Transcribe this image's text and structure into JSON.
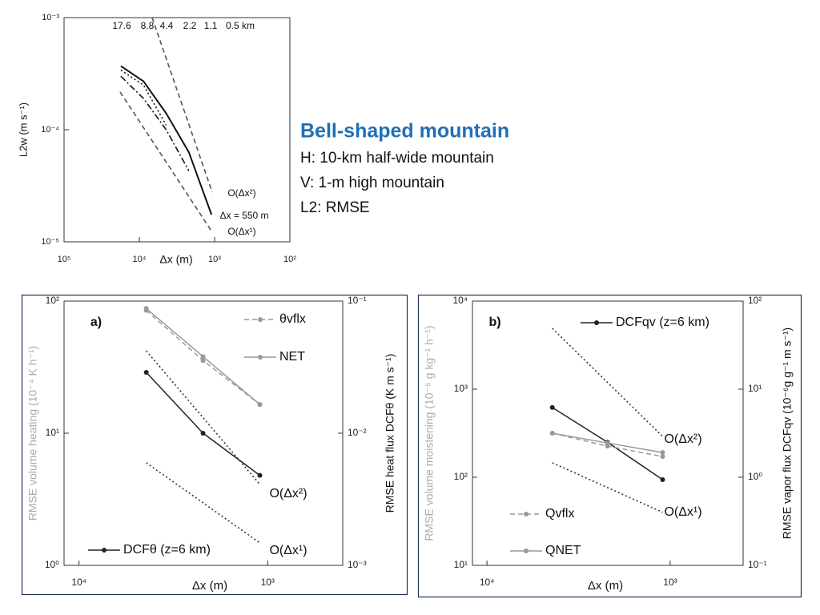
{
  "text_block": {
    "title": "Bell-shaped mountain",
    "lines": [
      "H: 10-km half-wide mountain",
      "V: 1-m high mountain",
      "L2: RMSE"
    ]
  },
  "chart_data": [
    {
      "type": "line",
      "x_label": "Δx (m)",
      "y_label": "L2w (m s⁻¹)",
      "log_x": true,
      "log_y": true,
      "xlim": [
        100000,
        100
      ],
      "ylim": [
        1e-05,
        0.001
      ],
      "xticks": [
        {
          "value": 100000,
          "label": "10⁵"
        },
        {
          "value": 10000,
          "label": "10⁴"
        },
        {
          "value": 1000,
          "label": "10³"
        },
        {
          "value": 100,
          "label": "10²"
        }
      ],
      "yticks": [
        {
          "value": 1e-05,
          "label": "10⁻⁵"
        },
        {
          "value": 0.0001,
          "label": "10⁻⁴"
        },
        {
          "value": 0.001,
          "label": "10⁻³"
        }
      ],
      "annotations": [
        "17.6",
        "8.8",
        "4.4",
        "2.2",
        "1.1",
        "0.5 km",
        "Δx = 550 m",
        "O(Δx²)",
        "O(Δx¹)"
      ],
      "series": [
        {
          "color": "#111111",
          "line_style": "solid",
          "x": [
            17600,
            8800,
            4400,
            2200,
            1100
          ],
          "values": [
            0.00037,
            0.00027,
            0.00014,
            6.3e-05,
            1.75e-05
          ]
        },
        {
          "color": "#111111",
          "line_style": "dotted",
          "x": [
            17600,
            8800,
            4400
          ],
          "values": [
            0.00034,
            0.00025,
            0.00011
          ]
        },
        {
          "color": "#111111",
          "line_style": "dashdot",
          "x": [
            17600,
            8800,
            4400,
            2200
          ],
          "values": [
            0.0003,
            0.00019,
            0.0001,
            4.3e-05
          ]
        },
        {
          "color": "#555555",
          "line_style": "dashed",
          "x": [
            6760,
            1076
          ],
          "values": [
            0.001,
            2.77e-05
          ]
        },
        {
          "color": "#555555",
          "line_style": "dashed",
          "x": [
            18000,
            1076
          ],
          "values": [
            0.000217,
            1.22e-05
          ]
        }
      ]
    },
    {
      "type": "line",
      "x_label": "Δx (m)",
      "y_label": "RMSE volume heating (10⁻⁴ K h⁻¹)",
      "y2_label": "RMSE heat flux DCFθ (K m s⁻¹)",
      "log_x": true,
      "log_y": true,
      "xlim": [
        12000,
        400
      ],
      "ylim": [
        1,
        100
      ],
      "y2lim": [
        0.001,
        0.1
      ],
      "xticks": [
        {
          "value": 10000,
          "label": "10⁴"
        },
        {
          "value": 1000,
          "label": "10³"
        }
      ],
      "yticks": [
        {
          "value": 1,
          "label": "10⁰"
        },
        {
          "value": 10,
          "label": "10¹"
        },
        {
          "value": 100,
          "label": "10²"
        }
      ],
      "y2ticks": [
        {
          "value": 0.001,
          "label": "10⁻³"
        },
        {
          "value": 0.01,
          "label": "10⁻²"
        },
        {
          "value": 0.1,
          "label": "10⁻¹"
        }
      ],
      "annotations": [
        "a)",
        "O(Δx²)",
        "O(Δx¹)"
      ],
      "series": [
        {
          "name": "θvflx",
          "color": "#999999",
          "line_style": "dashed",
          "markers": true,
          "x": [
            4400,
            2200,
            1100
          ],
          "values": [
            85,
            35.5,
            16.5
          ]
        },
        {
          "name": "NET",
          "color": "#999999",
          "line_style": "solid",
          "markers": true,
          "x": [
            4400,
            2200,
            1100
          ],
          "values": [
            88,
            38,
            16.5
          ]
        },
        {
          "name": "DCFθ (z=6 km)",
          "color": "#222222",
          "line_style": "solid",
          "markers": true,
          "axis": "y2",
          "x": [
            4400,
            2200,
            1100
          ],
          "values": [
            0.0289,
            0.01,
            0.0048
          ]
        },
        {
          "color": "#333333",
          "line_style": "dotted",
          "x": [
            4400,
            1100
          ],
          "values": [
            42,
            4.1
          ]
        },
        {
          "color": "#333333",
          "line_style": "dotted",
          "x": [
            4400,
            1100
          ],
          "values": [
            5.97,
            1.48
          ]
        }
      ]
    },
    {
      "type": "line",
      "x_label": "Δx (m)",
      "y_label": "RMSE volume moistening (10⁻⁵ g kg⁻¹ h⁻¹)",
      "y2_label": "RMSE vapor flux DCFqv (10⁻⁶g g⁻¹ m s⁻¹)",
      "log_x": true,
      "log_y": true,
      "xlim": [
        12000,
        400
      ],
      "ylim": [
        10,
        10000
      ],
      "y2lim": [
        0.1,
        100
      ],
      "xticks": [
        {
          "value": 10000,
          "label": "10⁴"
        },
        {
          "value": 1000,
          "label": "10³"
        }
      ],
      "yticks": [
        {
          "value": 10,
          "label": "10¹"
        },
        {
          "value": 100,
          "label": "10²"
        },
        {
          "value": 1000,
          "label": "10³"
        },
        {
          "value": 10000,
          "label": "10⁴"
        }
      ],
      "y2ticks": [
        {
          "value": 0.1,
          "label": "10⁻¹"
        },
        {
          "value": 1,
          "label": "10⁰"
        },
        {
          "value": 10,
          "label": "10¹"
        },
        {
          "value": 100,
          "label": "10²"
        }
      ],
      "annotations": [
        "b)",
        "O(Δx²)",
        "O(Δx¹)"
      ],
      "series": [
        {
          "name": "DCFqv (z=6 km)",
          "color": "#222222",
          "line_style": "solid",
          "markers": true,
          "axis": "y2",
          "x": [
            4400,
            2200,
            1100
          ],
          "values": [
            6.2,
            2.5,
            0.94
          ]
        },
        {
          "name": "Qvflx",
          "color": "#999999",
          "line_style": "dashed",
          "markers": true,
          "x": [
            4400,
            2200,
            1100
          ],
          "values": [
            316,
            226,
            172
          ]
        },
        {
          "name": "QNET",
          "color": "#999999",
          "line_style": "solid",
          "markers": true,
          "x": [
            4400,
            2200,
            1100
          ],
          "values": [
            316,
            245,
            191
          ]
        },
        {
          "color": "#333333",
          "line_style": "dotted",
          "x": [
            4400,
            1100
          ],
          "values": [
            4900,
            291
          ]
        },
        {
          "color": "#333333",
          "line_style": "dotted",
          "x": [
            4400,
            1100
          ],
          "values": [
            146,
            40
          ]
        }
      ]
    }
  ]
}
